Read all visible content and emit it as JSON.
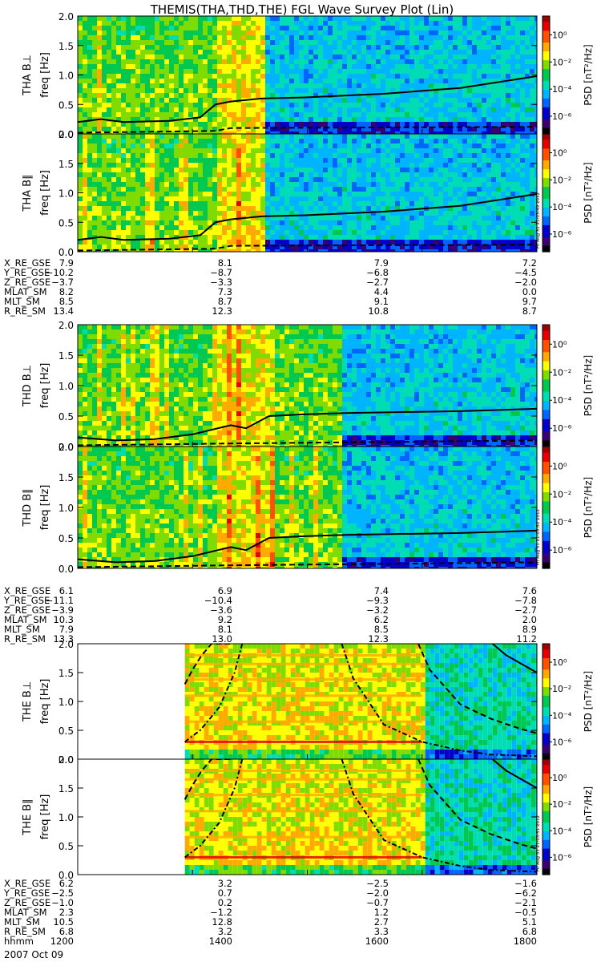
{
  "title": "THEMIS(THA,THD,THE) FGL Wave Survey Plot (Lin)",
  "date_label": "2007 Oct 09",
  "stamps": [
    "Fri Aug 31 21:03:49 2012",
    "Fri Aug 31 21:03:50 2012",
    "Fri Aug 31 21:03:51 2012"
  ],
  "colorbar": {
    "label": "PSD [nT²/Hz]",
    "tick_labels": [
      "10⁰",
      "10⁻²",
      "10⁻⁴",
      "10⁻⁶"
    ]
  },
  "colors": {
    "colormap": [
      "#000000",
      "#3a0070",
      "#0000c8",
      "#0064ff",
      "#00b4ff",
      "#00dcb4",
      "#00c850",
      "#80dc00",
      "#ffff00",
      "#ffaa00",
      "#ff5000",
      "#e60000",
      "#a00000"
    ],
    "overlay_line": "#000000"
  },
  "chart_data": [
    {
      "type": "heatmap",
      "ylabel": "THA B⊥",
      "yaxis_title": "freq [Hz]",
      "ylim": [
        0,
        2.0
      ],
      "yticks": [
        "0.0",
        "0.5",
        "1.0",
        "1.5",
        "2.0"
      ],
      "x": [
        1200,
        1800
      ],
      "data_start": 1200,
      "shift_time": 1440,
      "fce_line": {
        "x": [
          1200,
          1230,
          1260,
          1320,
          1360,
          1380,
          1400,
          1440,
          1500,
          1600,
          1700,
          1800
        ],
        "y": [
          0.2,
          0.25,
          0.2,
          0.22,
          0.28,
          0.5,
          0.55,
          0.6,
          0.62,
          0.68,
          0.78,
          0.98
        ]
      },
      "dashed_line": {
        "x": [
          1200,
          1380,
          1400,
          1800
        ],
        "y": [
          0.02,
          0.05,
          0.1,
          0.12
        ]
      },
      "dashdot_line": null
    },
    {
      "type": "heatmap",
      "ylabel": "THA B∥",
      "yaxis_title": "freq [Hz]",
      "ylim": [
        0,
        2.0
      ],
      "yticks": [
        "0.0",
        "0.5",
        "1.0",
        "1.5",
        "2.0"
      ],
      "x": [
        1200,
        1800
      ],
      "data_start": 1200,
      "shift_time": 1440,
      "fce_line": {
        "x": [
          1200,
          1230,
          1260,
          1320,
          1360,
          1380,
          1400,
          1440,
          1500,
          1600,
          1700,
          1800
        ],
        "y": [
          0.2,
          0.25,
          0.2,
          0.22,
          0.28,
          0.5,
          0.55,
          0.6,
          0.62,
          0.68,
          0.78,
          0.98
        ]
      },
      "dashed_line": {
        "x": [
          1200,
          1380,
          1400,
          1800
        ],
        "y": [
          0.02,
          0.05,
          0.1,
          0.12
        ]
      },
      "dashdot_line": null
    },
    {
      "type": "heatmap",
      "ylabel": "THD B⊥",
      "yaxis_title": "freq [Hz]",
      "ylim": [
        0,
        2.0
      ],
      "yticks": [
        "0.0",
        "0.5",
        "1.0",
        "1.5",
        "2.0"
      ],
      "x": [
        1200,
        1800
      ],
      "data_start": 1200,
      "shift_time": 1545,
      "fce_line": {
        "x": [
          1200,
          1250,
          1300,
          1350,
          1400,
          1420,
          1450,
          1500,
          1550,
          1600,
          1700,
          1800
        ],
        "y": [
          0.15,
          0.1,
          0.12,
          0.2,
          0.35,
          0.3,
          0.5,
          0.53,
          0.55,
          0.56,
          0.58,
          0.62
        ]
      },
      "dashed_line": {
        "x": [
          1200,
          1400,
          1800
        ],
        "y": [
          0.02,
          0.05,
          0.1
        ]
      },
      "dashdot_line": null
    },
    {
      "type": "heatmap",
      "ylabel": "THD B∥",
      "yaxis_title": "freq [Hz]",
      "ylim": [
        0,
        2.0
      ],
      "yticks": [
        "0.0",
        "0.5",
        "1.0",
        "1.5",
        "2.0"
      ],
      "x": [
        1200,
        1800
      ],
      "data_start": 1200,
      "shift_time": 1545,
      "fce_line": {
        "x": [
          1200,
          1250,
          1300,
          1350,
          1400,
          1420,
          1450,
          1500,
          1550,
          1600,
          1700,
          1800
        ],
        "y": [
          0.15,
          0.1,
          0.12,
          0.2,
          0.35,
          0.3,
          0.5,
          0.53,
          0.55,
          0.56,
          0.58,
          0.62
        ]
      },
      "dashed_line": {
        "x": [
          1200,
          1400,
          1800
        ],
        "y": [
          0.02,
          0.05,
          0.1
        ]
      },
      "dashdot_line": null
    },
    {
      "type": "heatmap",
      "ylabel": "THE B⊥",
      "yaxis_title": "freq [Hz]",
      "ylim": [
        0,
        2.0
      ],
      "yticks": [
        "0.0",
        "0.5",
        "1.0",
        "1.5",
        "2.0"
      ],
      "x": [
        1200,
        1800
      ],
      "data_start": 1340,
      "shift_time": 1650,
      "fce_line": {
        "x": [
          1742,
          1760,
          1780,
          1800
        ],
        "y": [
          2.0,
          1.8,
          1.65,
          1.5
        ]
      },
      "dashed_line": {
        "x": [
          1340,
          1350,
          1362,
          1375,
          1385,
          1400
        ],
        "y": [
          1.3,
          1.55,
          1.8,
          2.0,
          2.0,
          2.0
        ]
      },
      "dashdot_line": {
        "x": [
          1340,
          1360,
          1385,
          1405,
          1415
        ],
        "y": [
          0.3,
          0.5,
          0.9,
          1.5,
          2.0
        ]
      },
      "curves_right": [
        {
          "style": "dashdot",
          "x": [
            1545,
            1560,
            1600,
            1650,
            1700,
            1740,
            1800
          ],
          "y": [
            2.0,
            1.4,
            0.6,
            0.3,
            0.15,
            0.08,
            0.05
          ]
        },
        {
          "style": "dashed",
          "x": [
            1645,
            1660,
            1700,
            1740,
            1780,
            1800
          ],
          "y": [
            2.0,
            1.55,
            0.95,
            0.7,
            0.52,
            0.45
          ]
        }
      ]
    },
    {
      "type": "heatmap",
      "ylabel": "THE B∥",
      "yaxis_title": "freq [Hz]",
      "ylim": [
        0,
        2.0
      ],
      "yticks": [
        "0.0",
        "0.5",
        "1.0",
        "1.5",
        "2.0"
      ],
      "x": [
        1200,
        1800
      ],
      "data_start": 1340,
      "shift_time": 1650,
      "fce_line": {
        "x": [
          1742,
          1760,
          1780,
          1800
        ],
        "y": [
          2.0,
          1.8,
          1.65,
          1.5
        ]
      },
      "dashed_line": {
        "x": [
          1340,
          1350,
          1362,
          1375,
          1385,
          1400
        ],
        "y": [
          1.3,
          1.55,
          1.8,
          2.0,
          2.0,
          2.0
        ]
      },
      "dashdot_line": {
        "x": [
          1340,
          1360,
          1385,
          1405,
          1415
        ],
        "y": [
          0.3,
          0.5,
          0.9,
          1.5,
          2.0
        ]
      },
      "curves_right": [
        {
          "style": "dashdot",
          "x": [
            1545,
            1560,
            1600,
            1650,
            1700,
            1740,
            1800
          ],
          "y": [
            2.0,
            1.4,
            0.6,
            0.3,
            0.15,
            0.08,
            0.05
          ]
        },
        {
          "style": "dashed",
          "x": [
            1645,
            1660,
            1700,
            1740,
            1780,
            1800
          ],
          "y": [
            2.0,
            1.55,
            0.95,
            0.7,
            0.52,
            0.45
          ]
        }
      ]
    }
  ],
  "ephemeris": [
    {
      "rows": [
        {
          "label": "X_RE_GSE",
          "values": [
            "7.9",
            "8.1",
            "7.9",
            "7.2"
          ]
        },
        {
          "label": "Y_RE_GSE",
          "values": [
            "−10.2",
            "−8.7",
            "−6.8",
            "−4.5"
          ]
        },
        {
          "label": "Z_RE_GSE",
          "values": [
            "−3.7",
            "−3.3",
            "−2.7",
            "−2.0"
          ]
        },
        {
          "label": "MLAT_SM",
          "values": [
            "8.2",
            "7.3",
            "4.4",
            "0.0"
          ]
        },
        {
          "label": "MLT_SM",
          "values": [
            "8.5",
            "8.7",
            "9.1",
            "9.7"
          ]
        },
        {
          "label": "R_RE_SM",
          "values": [
            "13.4",
            "12.3",
            "10.8",
            "8.7"
          ]
        }
      ]
    },
    {
      "rows": [
        {
          "label": "X_RE_GSE",
          "values": [
            "6.1",
            "6.9",
            "7.4",
            "7.6"
          ]
        },
        {
          "label": "Y_RE_GSE",
          "values": [
            "−11.1",
            "−10.4",
            "−9.3",
            "−7.8"
          ]
        },
        {
          "label": "Z_RE_GSE",
          "values": [
            "−3.9",
            "−3.6",
            "−3.2",
            "−2.7"
          ]
        },
        {
          "label": "MLAT_SM",
          "values": [
            "10.3",
            "9.2",
            "6.2",
            "2.0"
          ]
        },
        {
          "label": "MLT_SM",
          "values": [
            "7.9",
            "8.1",
            "8.5",
            "8.9"
          ]
        },
        {
          "label": "R_RE_SM",
          "values": [
            "13.3",
            "13.0",
            "12.3",
            "11.2"
          ]
        }
      ]
    },
    {
      "rows": [
        {
          "label": "X_RE_GSE",
          "values": [
            "6.2",
            "3.2",
            "−2.5",
            "−1.6"
          ]
        },
        {
          "label": "Y_RE_GSE",
          "values": [
            "−2.5",
            "0.7",
            "−2.0",
            "−6.2"
          ]
        },
        {
          "label": "Z_RE_GSE",
          "values": [
            "−1.0",
            "0.2",
            "−0.7",
            "−2.1"
          ]
        },
        {
          "label": "MLAT_SM",
          "values": [
            "2.3",
            "−1.2",
            "1.2",
            "−0.5"
          ]
        },
        {
          "label": "MLT_SM",
          "values": [
            "10.5",
            "12.8",
            "2.7",
            "5.1"
          ]
        },
        {
          "label": "R_RE_SM",
          "values": [
            "6.8",
            "3.2",
            "3.3",
            "6.8"
          ]
        },
        {
          "label": "hhmm",
          "values": [
            "1200",
            "1400",
            "1600",
            "1800"
          ]
        }
      ]
    }
  ]
}
